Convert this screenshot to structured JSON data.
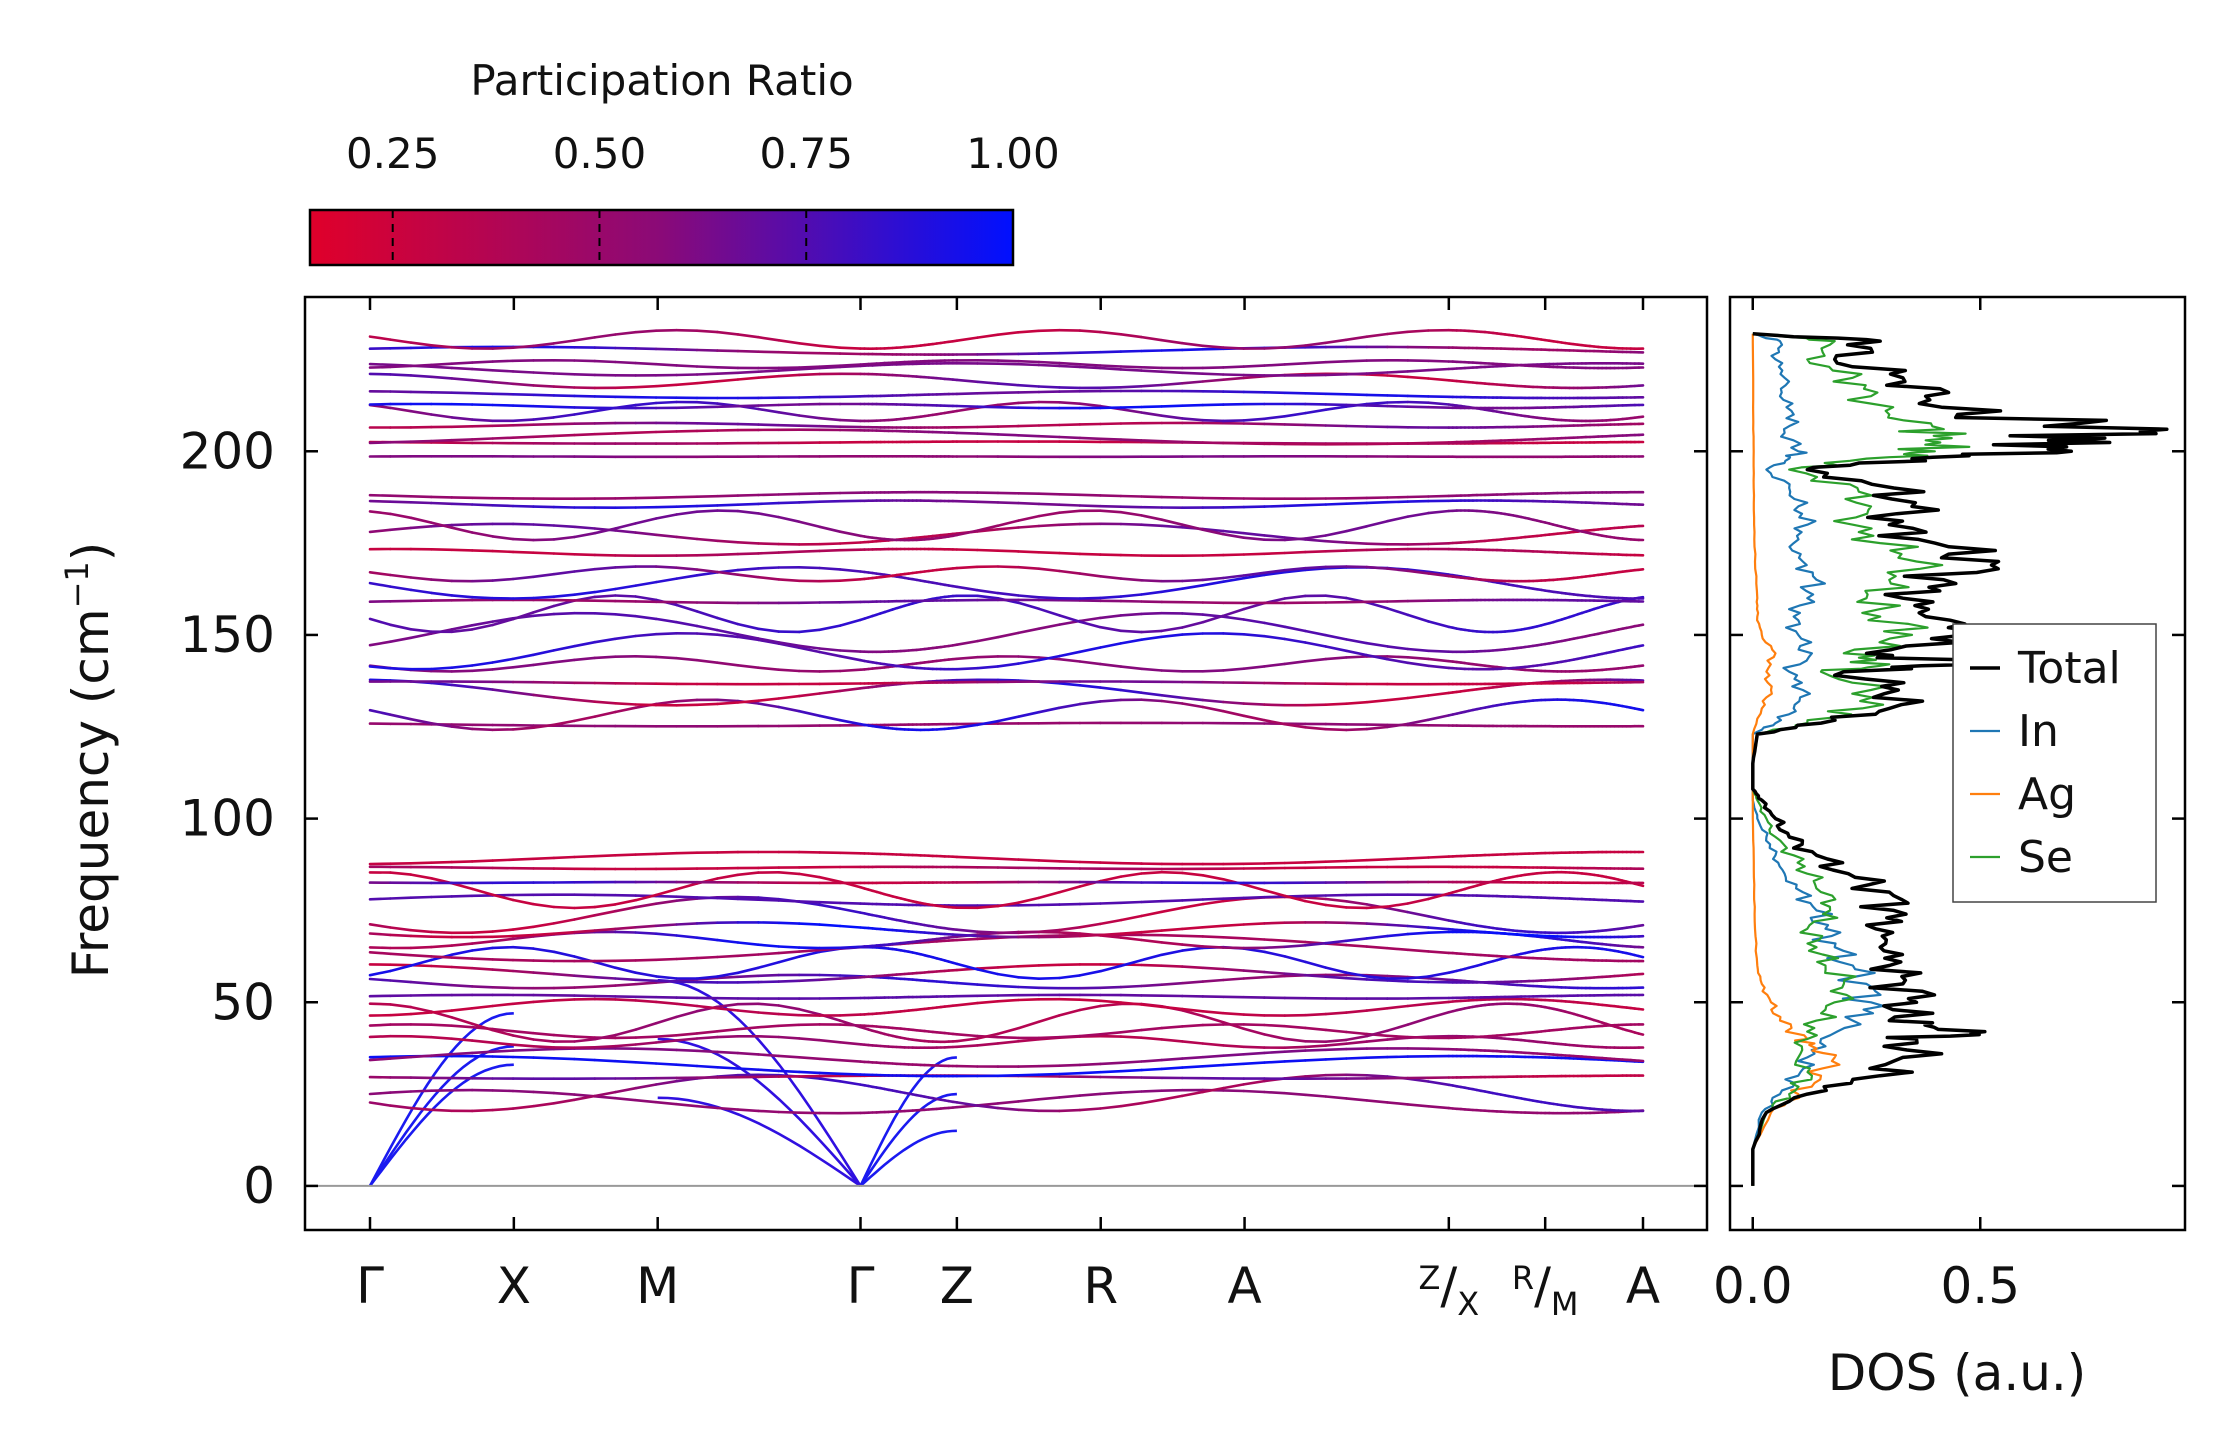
{
  "chart_data": [
    {
      "type": "line",
      "name": "phonon-band-structure",
      "ylabel": "Frequency (cm",
      "ylabel_sup": "−1",
      "ylabel_close": ")",
      "ylim": [
        -12,
        242
      ],
      "yticks": [
        "0",
        "50",
        "100",
        "150",
        "200"
      ],
      "ytick_values": [
        0,
        50,
        100,
        150,
        200
      ],
      "kpath_labels": [
        {
          "label": "Γ",
          "k": 0.0
        },
        {
          "label": "X",
          "k": 1.0
        },
        {
          "label": "M",
          "k": 2.0
        },
        {
          "label": "Γ",
          "k": 3.41
        },
        {
          "label": "Z",
          "k": 4.08
        },
        {
          "label": "R",
          "k": 5.08
        },
        {
          "label": "A",
          "k": 6.08
        },
        {
          "label": "A",
          "k": 8.85
        }
      ],
      "kpath_compound_labels": [
        {
          "top": "Z",
          "sep": "/",
          "sub": "X",
          "k": 7.5
        },
        {
          "top": "R",
          "sep": "/",
          "sub": "M",
          "k": 8.17
        }
      ],
      "k_max": 8.85,
      "path_breaks": [
        7.5,
        8.17
      ],
      "colorbar": {
        "label": "Participation Ratio",
        "ticks": [
          "0.25",
          "0.50",
          "0.75",
          "1.00"
        ],
        "tick_values": [
          0.25,
          0.5,
          0.75,
          1.0
        ],
        "range": [
          0.15,
          1.0
        ],
        "low_color": "#e0002a",
        "mid_color": "#8a0a78",
        "high_color": "#0010ff"
      },
      "acoustic_branches": [
        {
          "segment": "Gamma-X",
          "start_freq": 0,
          "end_freqs": [
            33,
            38,
            47
          ]
        },
        {
          "segment": "Gamma-Z",
          "start_freq": 0,
          "end_freqs": [
            15,
            25,
            35
          ]
        }
      ],
      "optical_band_gap_cm1": [
        107,
        123
      ]
    },
    {
      "type": "line",
      "name": "density-of-states",
      "xlabel": "DOS (a.u.)",
      "xticks": [
        "0.0",
        "0.5"
      ],
      "xtick_values": [
        0.0,
        0.5
      ],
      "xlim": [
        -0.05,
        0.95
      ],
      "ylim": [
        -12,
        242
      ],
      "series": [
        {
          "name": "Total",
          "color": "#000000",
          "freq": [
            0,
            10,
            20,
            25,
            30,
            35,
            40,
            42,
            45,
            50,
            55,
            60,
            65,
            70,
            75,
            80,
            85,
            90,
            95,
            100,
            105,
            108,
            115,
            123,
            126,
            130,
            135,
            140,
            142,
            145,
            150,
            155,
            160,
            165,
            170,
            175,
            180,
            185,
            190,
            195,
            198,
            200,
            203,
            206,
            210,
            215,
            220,
            225,
            230,
            232
          ],
          "dos": [
            0.0,
            0.0,
            0.03,
            0.12,
            0.28,
            0.33,
            0.36,
            0.51,
            0.3,
            0.36,
            0.33,
            0.3,
            0.28,
            0.27,
            0.31,
            0.3,
            0.21,
            0.14,
            0.08,
            0.05,
            0.02,
            0.0,
            0.0,
            0.01,
            0.15,
            0.3,
            0.32,
            0.2,
            0.5,
            0.25,
            0.47,
            0.38,
            0.33,
            0.42,
            0.54,
            0.4,
            0.3,
            0.35,
            0.31,
            0.12,
            0.35,
            0.7,
            0.65,
            0.91,
            0.45,
            0.38,
            0.33,
            0.18,
            0.28,
            0.0
          ]
        },
        {
          "name": "In",
          "color": "#1f77b4",
          "freq": [
            0,
            10,
            20,
            25,
            30,
            35,
            40,
            45,
            50,
            55,
            60,
            65,
            70,
            75,
            80,
            85,
            90,
            95,
            100,
            105,
            108,
            115,
            123,
            126,
            130,
            135,
            140,
            145,
            150,
            155,
            160,
            165,
            170,
            175,
            180,
            185,
            190,
            195,
            198,
            200,
            205,
            210,
            215,
            220,
            225,
            230,
            232
          ],
          "dos": [
            0.0,
            0.0,
            0.02,
            0.06,
            0.1,
            0.12,
            0.15,
            0.22,
            0.26,
            0.25,
            0.22,
            0.18,
            0.16,
            0.14,
            0.11,
            0.07,
            0.05,
            0.03,
            0.01,
            0.0,
            0.0,
            0.0,
            0.0,
            0.05,
            0.09,
            0.11,
            0.08,
            0.13,
            0.1,
            0.09,
            0.12,
            0.14,
            0.11,
            0.09,
            0.12,
            0.1,
            0.08,
            0.03,
            0.08,
            0.1,
            0.07,
            0.09,
            0.06,
            0.07,
            0.05,
            0.06,
            0.0
          ]
        },
        {
          "name": "Ag",
          "color": "#ff7f0e",
          "freq": [
            0,
            10,
            20,
            25,
            30,
            35,
            38,
            40,
            45,
            50,
            55,
            60,
            70,
            80,
            90,
            100,
            108,
            123,
            130,
            135,
            140,
            145,
            150,
            155,
            160,
            170,
            180,
            190,
            200,
            210,
            220,
            232
          ],
          "dos": [
            0.0,
            0.0,
            0.04,
            0.1,
            0.15,
            0.18,
            0.13,
            0.12,
            0.06,
            0.04,
            0.02,
            0.01,
            0.005,
            0.003,
            0.002,
            0.0,
            0.0,
            0.0,
            0.02,
            0.04,
            0.03,
            0.05,
            0.02,
            0.01,
            0.01,
            0.005,
            0.003,
            0.002,
            0.002,
            0.001,
            0.001,
            0.0
          ]
        },
        {
          "name": "Se",
          "color": "#2ca02c",
          "freq": [
            0,
            10,
            20,
            25,
            30,
            35,
            40,
            45,
            50,
            55,
            60,
            65,
            70,
            75,
            80,
            85,
            90,
            95,
            100,
            105,
            108,
            115,
            123,
            126,
            130,
            135,
            140,
            142,
            145,
            150,
            155,
            160,
            165,
            170,
            175,
            180,
            185,
            190,
            195,
            198,
            200,
            203,
            206,
            210,
            215,
            220,
            225,
            230,
            232
          ],
          "dos": [
            0.0,
            0.0,
            0.03,
            0.08,
            0.13,
            0.1,
            0.12,
            0.14,
            0.18,
            0.2,
            0.16,
            0.14,
            0.12,
            0.17,
            0.15,
            0.12,
            0.09,
            0.05,
            0.03,
            0.01,
            0.0,
            0.0,
            0.01,
            0.12,
            0.24,
            0.26,
            0.15,
            0.3,
            0.2,
            0.35,
            0.28,
            0.25,
            0.3,
            0.36,
            0.28,
            0.22,
            0.26,
            0.23,
            0.08,
            0.25,
            0.4,
            0.38,
            0.42,
            0.3,
            0.26,
            0.22,
            0.12,
            0.18,
            0.0
          ]
        }
      ],
      "legend": {
        "placement": "center-right",
        "entries": [
          "Total",
          "In",
          "Ag",
          "Se"
        ]
      }
    }
  ]
}
